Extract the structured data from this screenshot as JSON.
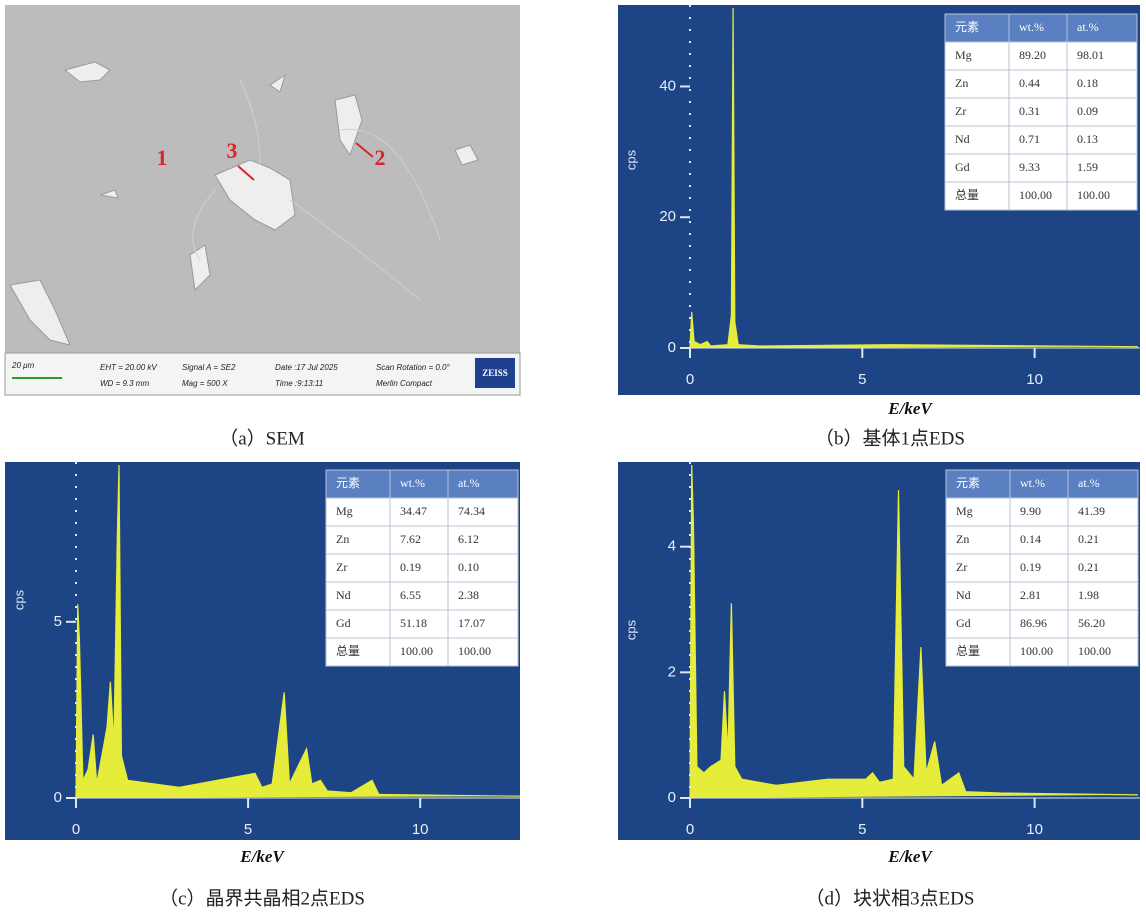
{
  "sem": {
    "points": [
      "1",
      "2",
      "3"
    ],
    "scale": "20 μm",
    "info": [
      "EHT = 20.00 kV",
      "Signal A = SE2",
      "Date :17 Jul 2025",
      "Scan Rotation = 0.0°",
      "WD = 9.3 mm",
      "Mag = 500 X",
      "Time :9:13:11",
      "Merlin Compact"
    ],
    "brand": "ZEISS",
    "caption": "（a）SEM"
  },
  "chart_data": [
    {
      "type": "area",
      "caption": "（b）基体1点EDS",
      "xlabel": "E/keV",
      "ylabel": "cps",
      "color": "#e6ec3a",
      "xlim": [
        0,
        13
      ],
      "ylim": [
        0,
        52
      ],
      "xticks": [
        0,
        5,
        10
      ],
      "yticks": [
        0,
        20,
        40
      ],
      "x": [
        0,
        0.05,
        0.12,
        0.3,
        0.5,
        0.6,
        1.1,
        1.2,
        1.25,
        1.3,
        1.4,
        2,
        6,
        13
      ],
      "values": [
        0,
        5.5,
        1,
        0.5,
        1,
        0.3,
        0.5,
        5,
        52,
        4,
        0.5,
        0.3,
        0.5,
        0.2
      ],
      "table": {
        "header": [
          "元素",
          "wt.%",
          "at.%"
        ],
        "rows": [
          [
            "Mg",
            "89.20",
            "98.01"
          ],
          [
            "Zn",
            "0.44",
            "0.18"
          ],
          [
            "Zr",
            "0.31",
            "0.09"
          ],
          [
            "Nd",
            "0.71",
            "0.13"
          ],
          [
            "Gd",
            "9.33",
            "1.59"
          ],
          [
            "总量",
            "100.00",
            "100.00"
          ]
        ]
      }
    },
    {
      "type": "area",
      "caption": "（c）晶界共晶相2点EDS",
      "xlabel": "E/keV",
      "ylabel": "cps",
      "color": "#e6ec3a",
      "xlim": [
        0,
        12.9
      ],
      "ylim": [
        0,
        9.45
      ],
      "xticks": [
        0,
        5,
        10
      ],
      "yticks": [
        0,
        5
      ],
      "x": [
        0,
        0.05,
        0.1,
        0.2,
        0.35,
        0.5,
        0.6,
        0.9,
        1.0,
        1.1,
        1.2,
        1.25,
        1.32,
        1.5,
        3,
        5.2,
        5.4,
        5.7,
        6.05,
        6.2,
        6.7,
        6.85,
        7.1,
        7.3,
        8.0,
        8.6,
        8.8,
        12.9
      ],
      "values": [
        0,
        5.5,
        4.5,
        0.5,
        0.8,
        1.8,
        0.4,
        2,
        3.3,
        1.5,
        7.4,
        9.45,
        1.2,
        0.5,
        0.3,
        0.7,
        0.3,
        0.4,
        3,
        0.4,
        1.4,
        0.4,
        0.5,
        0.2,
        0.15,
        0.5,
        0.1,
        0.05
      ],
      "table": {
        "header": [
          "元素",
          "wt.%",
          "at.%"
        ],
        "rows": [
          [
            "Mg",
            "34.47",
            "74.34"
          ],
          [
            "Zn",
            "7.62",
            "6.12"
          ],
          [
            "Zr",
            "0.19",
            "0.10"
          ],
          [
            "Nd",
            "6.55",
            "2.38"
          ],
          [
            "Gd",
            "51.18",
            "17.07"
          ],
          [
            "总量",
            "100.00",
            "100.00"
          ]
        ]
      }
    },
    {
      "type": "area",
      "caption": "（d）块状相3点EDS",
      "xlabel": "E/keV",
      "ylabel": "cps",
      "color": "#e6ec3a",
      "xlim": [
        0,
        13
      ],
      "ylim": [
        0,
        5.3
      ],
      "xticks": [
        0,
        5,
        10
      ],
      "yticks": [
        0,
        2,
        4
      ],
      "x": [
        0,
        0.05,
        0.1,
        0.2,
        0.4,
        0.6,
        0.9,
        1.0,
        1.1,
        1.2,
        1.3,
        1.5,
        2.5,
        4,
        5.1,
        5.3,
        5.5,
        5.9,
        6.05,
        6.2,
        6.5,
        6.7,
        6.85,
        7.1,
        7.3,
        7.8,
        8.0,
        9,
        13
      ],
      "values": [
        0,
        5.3,
        4.4,
        0.5,
        0.4,
        0.5,
        0.6,
        1.7,
        0.7,
        3.1,
        0.5,
        0.3,
        0.2,
        0.3,
        0.3,
        0.4,
        0.25,
        0.3,
        4.9,
        0.5,
        0.3,
        2.4,
        0.4,
        0.9,
        0.2,
        0.4,
        0.1,
        0.08,
        0.05
      ],
      "table": {
        "header": [
          "元素",
          "wt.%",
          "at.%"
        ],
        "rows": [
          [
            "Mg",
            "9.90",
            "41.39"
          ],
          [
            "Zn",
            "0.14",
            "0.21"
          ],
          [
            "Zr",
            "0.19",
            "0.21"
          ],
          [
            "Nd",
            "2.81",
            "1.98"
          ],
          [
            "Gd",
            "86.96",
            "56.20"
          ],
          [
            "总量",
            "100.00",
            "100.00"
          ]
        ]
      }
    }
  ]
}
